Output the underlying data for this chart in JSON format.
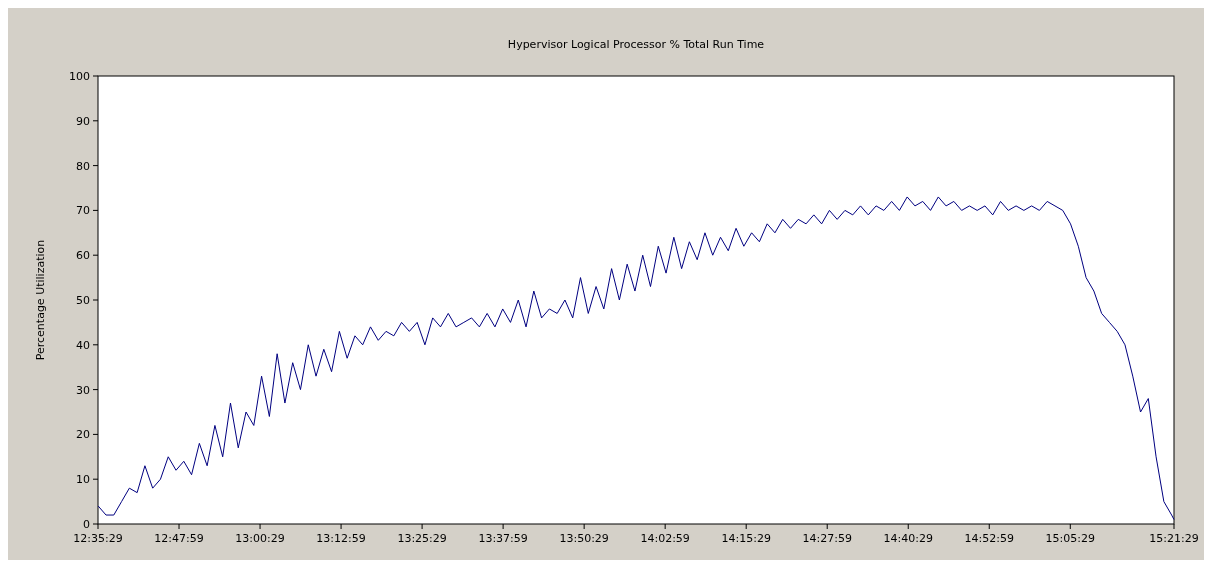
{
  "chart_data": {
    "type": "line",
    "title": "Hypervisor Logical Processor % Total Run Time",
    "ylabel": "Percentage Utilization",
    "x": [
      12.592,
      12.612,
      12.632,
      12.652,
      12.672,
      12.692,
      12.712,
      12.732,
      12.752,
      12.772,
      12.792,
      12.812,
      12.832,
      12.852,
      12.872,
      12.892,
      12.912,
      12.932,
      12.952,
      12.972,
      12.992,
      13.012,
      13.032,
      13.052,
      13.072,
      13.092,
      13.112,
      13.132,
      13.152,
      13.172,
      13.192,
      13.212,
      13.232,
      13.252,
      13.272,
      13.292,
      13.312,
      13.332,
      13.352,
      13.372,
      13.392,
      13.412,
      13.432,
      13.452,
      13.472,
      13.492,
      13.512,
      13.532,
      13.552,
      13.572,
      13.592,
      13.612,
      13.632,
      13.652,
      13.672,
      13.692,
      13.712,
      13.732,
      13.752,
      13.772,
      13.792,
      13.812,
      13.832,
      13.852,
      13.872,
      13.892,
      13.912,
      13.932,
      13.952,
      13.972,
      13.992,
      14.012,
      14.032,
      14.052,
      14.072,
      14.092,
      14.112,
      14.132,
      14.152,
      14.172,
      14.192,
      14.212,
      14.232,
      14.252,
      14.272,
      14.292,
      14.312,
      14.332,
      14.352,
      14.372,
      14.392,
      14.412,
      14.432,
      14.452,
      14.472,
      14.492,
      14.512,
      14.532,
      14.552,
      14.572,
      14.592,
      14.612,
      14.632,
      14.652,
      14.672,
      14.692,
      14.712,
      14.732,
      14.752,
      14.772,
      14.792,
      14.812,
      14.832,
      14.852,
      14.872,
      14.892,
      14.912,
      14.932,
      14.952,
      14.972,
      14.992,
      15.012,
      15.032,
      15.052,
      15.072,
      15.092,
      15.112,
      15.132,
      15.152,
      15.172,
      15.192,
      15.212,
      15.232,
      15.252,
      15.272,
      15.292,
      15.312,
      15.332,
      15.352,
      15.358
    ],
    "series": [
      {
        "color": "#000080",
        "values": [
          4,
          2,
          2,
          5,
          8,
          7,
          13,
          8,
          10,
          15,
          12,
          14,
          11,
          18,
          13,
          22,
          15,
          27,
          17,
          25,
          22,
          33,
          24,
          38,
          27,
          36,
          30,
          40,
          33,
          39,
          34,
          43,
          37,
          42,
          40,
          44,
          41,
          43,
          42,
          45,
          43,
          45,
          40,
          46,
          44,
          47,
          44,
          45,
          46,
          44,
          47,
          44,
          48,
          45,
          50,
          44,
          52,
          46,
          48,
          47,
          50,
          46,
          55,
          47,
          53,
          48,
          57,
          50,
          58,
          52,
          60,
          53,
          62,
          56,
          64,
          57,
          63,
          59,
          65,
          60,
          64,
          61,
          66,
          62,
          65,
          63,
          67,
          65,
          68,
          66,
          68,
          67,
          69,
          67,
          70,
          68,
          70,
          69,
          71,
          69,
          71,
          70,
          72,
          70,
          73,
          71,
          72,
          70,
          73,
          71,
          72,
          70,
          71,
          70,
          71,
          69,
          72,
          70,
          71,
          70,
          71,
          70,
          72,
          71,
          70,
          67,
          62,
          55,
          52,
          47,
          45,
          43,
          40,
          33,
          25,
          28,
          15,
          5,
          2,
          1
        ]
      }
    ],
    "xlim": [
      12.591389,
      15.358056
    ],
    "xticks": [
      {
        "value": 12.591389,
        "label": "12:35:29"
      },
      {
        "value": 12.799722,
        "label": "12:47:59"
      },
      {
        "value": 13.008056,
        "label": "13:00:29"
      },
      {
        "value": 13.216389,
        "label": "13:12:59"
      },
      {
        "value": 13.424722,
        "label": "13:25:29"
      },
      {
        "value": 13.633056,
        "label": "13:37:59"
      },
      {
        "value": 13.841389,
        "label": "13:50:29"
      },
      {
        "value": 14.049722,
        "label": "14:02:59"
      },
      {
        "value": 14.258056,
        "label": "14:15:29"
      },
      {
        "value": 14.466389,
        "label": "14:27:59"
      },
      {
        "value": 14.674722,
        "label": "14:40:29"
      },
      {
        "value": 14.883056,
        "label": "14:52:59"
      },
      {
        "value": 15.091389,
        "label": "15:05:29"
      },
      {
        "value": 15.358056,
        "label": "15:21:29"
      }
    ],
    "ylim": [
      0,
      100
    ],
    "yticks": [
      0,
      10,
      20,
      30,
      40,
      50,
      60,
      70,
      80,
      90,
      100
    ],
    "grid": false,
    "marker": "none",
    "line_style": "solid"
  }
}
